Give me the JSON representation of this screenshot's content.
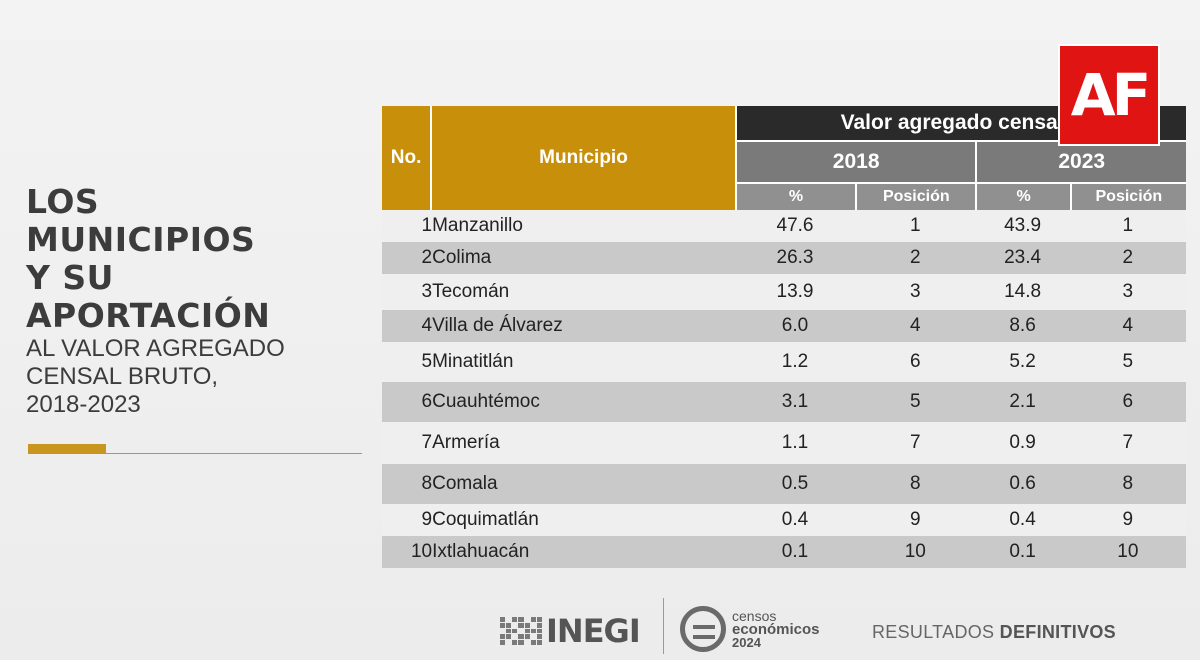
{
  "title": {
    "line1": "LOS",
    "line2": "MUNICIPIOS",
    "line3": "Y SU",
    "line4": "APORTACIÓN",
    "line5": "AL VALOR AGREGADO",
    "line6": "CENSAL BRUTO,",
    "line7": "2018-2023"
  },
  "table": {
    "header_no": "No.",
    "header_municipio": "Municipio",
    "header_group": "Valor agregado censal b",
    "year1": "2018",
    "year2": "2023",
    "sub_pct": "%",
    "sub_pos": "Posición",
    "rows": [
      {
        "no": "1",
        "mun": "Manzanillo",
        "p18": "47.6",
        "pos18": "1",
        "p23": "43.9",
        "pos23": "1"
      },
      {
        "no": "2",
        "mun": "Colima",
        "p18": "26.3",
        "pos18": "2",
        "p23": "23.4",
        "pos23": "2"
      },
      {
        "no": "3",
        "mun": "Tecomán",
        "p18": "13.9",
        "pos18": "3",
        "p23": "14.8",
        "pos23": "3"
      },
      {
        "no": "4",
        "mun": "Villa de Álvarez",
        "p18": "6.0",
        "pos18": "4",
        "p23": "8.6",
        "pos23": "4"
      },
      {
        "no": "5",
        "mun": "Minatitlán",
        "p18": "1.2",
        "pos18": "6",
        "p23": "5.2",
        "pos23": "5"
      },
      {
        "no": "6",
        "mun": "Cuauhtémoc",
        "p18": "3.1",
        "pos18": "5",
        "p23": "2.1",
        "pos23": "6"
      },
      {
        "no": "7",
        "mun": "Armería",
        "p18": "1.1",
        "pos18": "7",
        "p23": "0.9",
        "pos23": "7"
      },
      {
        "no": "8",
        "mun": "Comala",
        "p18": "0.5",
        "pos18": "8",
        "p23": "0.6",
        "pos23": "8"
      },
      {
        "no": "9",
        "mun": "Coquimatlán",
        "p18": "0.4",
        "pos18": "9",
        "p23": "0.4",
        "pos23": "9"
      },
      {
        "no": "10",
        "mun": "Ixtlahuacán",
        "p18": "0.1",
        "pos18": "10",
        "p23": "0.1",
        "pos23": "10"
      }
    ]
  },
  "logo": {
    "text": "AF",
    "color": "#e11414"
  },
  "footer": {
    "inegi": "INEGI",
    "censos_l1": "censos",
    "censos_l2": "económicos",
    "censos_l3": "2024",
    "resultados": "RESULTADOS",
    "definitivos": "DEFINITIVOS"
  },
  "colors": {
    "accent": "#c8900a",
    "header_dark": "#2a2a2a",
    "header_year": "#7a7a7a"
  }
}
